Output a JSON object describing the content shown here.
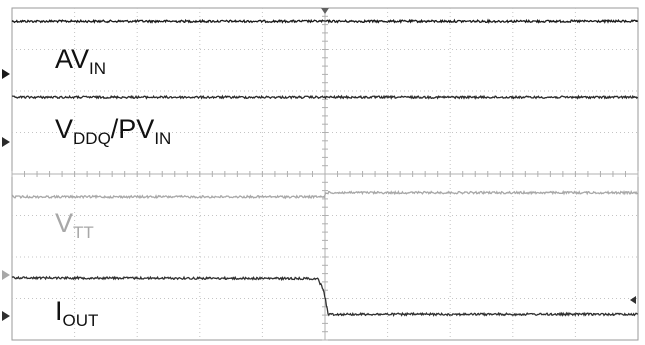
{
  "chart_data": {
    "type": "line",
    "grid": true,
    "xlim": [
      0,
      10
    ],
    "ylim": [
      0,
      8
    ],
    "series": [
      {
        "name": "AVIN",
        "color": "#1a1a1a",
        "x": [
          0,
          10
        ],
        "y": [
          7.68,
          7.68
        ],
        "label_main": "AV",
        "label_sub": "IN"
      },
      {
        "name": "VDDQ/PVIN",
        "color": "#2b2b2b",
        "x": [
          0,
          10
        ],
        "y": [
          5.85,
          5.85
        ],
        "label_main": "V",
        "label_sub": "DDQ",
        "label_tail": "/PV",
        "label_sub2": "IN"
      },
      {
        "name": "VTT",
        "color": "#a8a8a8",
        "x": [
          0,
          4.98,
          5.02,
          10
        ],
        "y": [
          3.45,
          3.45,
          3.55,
          3.55
        ],
        "label_main": "V",
        "label_sub": "TT"
      },
      {
        "name": "IOUT",
        "color": "#303030",
        "x": [
          0,
          4.88,
          4.98,
          5.05,
          10
        ],
        "y": [
          1.5,
          1.48,
          1.2,
          0.62,
          0.62
        ],
        "label_main": "I",
        "label_sub": "OUT"
      }
    ]
  }
}
